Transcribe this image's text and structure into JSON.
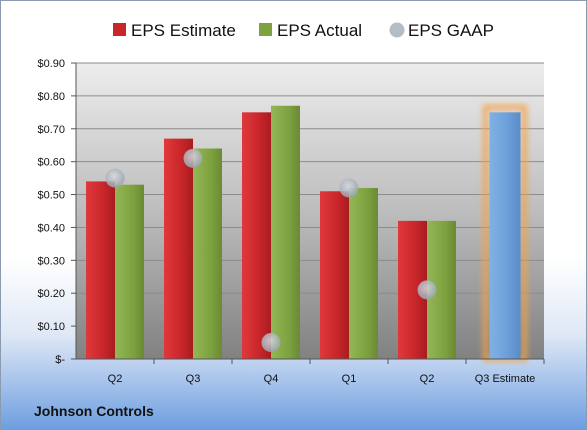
{
  "company": "Johnson Controls",
  "colors": {
    "estimate": "#c8262a",
    "actual": "#7fa241",
    "gaap": "#b4bcc6",
    "forecast": "#6b9fd9",
    "forecast_glow": "#f3a24b"
  },
  "chart_data": {
    "type": "bar",
    "categories": [
      "Q2",
      "Q3",
      "Q4",
      "Q1",
      "Q2",
      "Q3 Estimate"
    ],
    "series": [
      {
        "name": "EPS Estimate",
        "values": [
          0.54,
          0.67,
          0.75,
          0.51,
          0.42,
          null
        ]
      },
      {
        "name": "EPS Actual",
        "values": [
          0.53,
          0.64,
          0.77,
          0.52,
          0.42,
          null
        ]
      },
      {
        "name": "EPS GAAP",
        "values": [
          0.55,
          0.61,
          0.05,
          0.52,
          0.21,
          null
        ]
      }
    ],
    "forecast": {
      "category": "Q3 Estimate",
      "value": 0.75
    },
    "ylim": [
      0,
      0.9
    ],
    "yticks": [
      {
        "value": 0,
        "label": "$-"
      },
      {
        "value": 0.1,
        "label": "$0.10"
      },
      {
        "value": 0.2,
        "label": "$0.20"
      },
      {
        "value": 0.3,
        "label": "$0.30"
      },
      {
        "value": 0.4,
        "label": "$0.40"
      },
      {
        "value": 0.5,
        "label": "$0.50"
      },
      {
        "value": 0.6,
        "label": "$0.60"
      },
      {
        "value": 0.7,
        "label": "$0.70"
      },
      {
        "value": 0.8,
        "label": "$0.80"
      },
      {
        "value": 0.9,
        "label": "$0.90"
      }
    ],
    "grid": true,
    "legend": "top"
  }
}
